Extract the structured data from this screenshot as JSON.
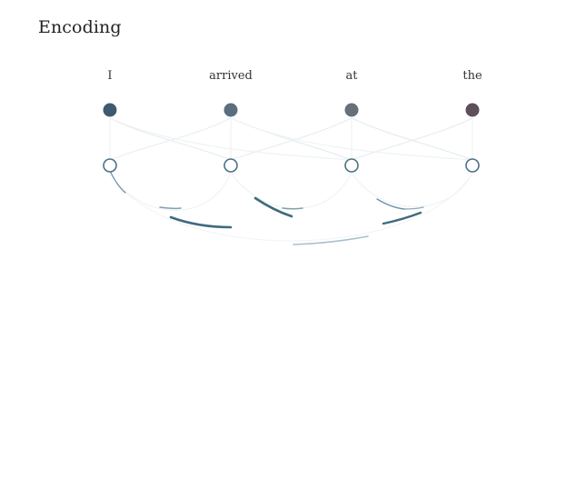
{
  "title": "Encoding",
  "tokens": [
    {
      "word": "I",
      "color": "#3e5a6e"
    },
    {
      "word": "arrived",
      "color": "#596e7f"
    },
    {
      "word": "at",
      "color": "#66707a"
    },
    {
      "word": "the",
      "color": "#5d4f5b"
    }
  ],
  "colors": {
    "hidden_node_stroke": "#4c7186",
    "attention_dark": "#3f6a7d",
    "attention_mid": "#6e94a6",
    "attention_light": "#a9c0cc",
    "attention_faint": "#e6ecef"
  }
}
